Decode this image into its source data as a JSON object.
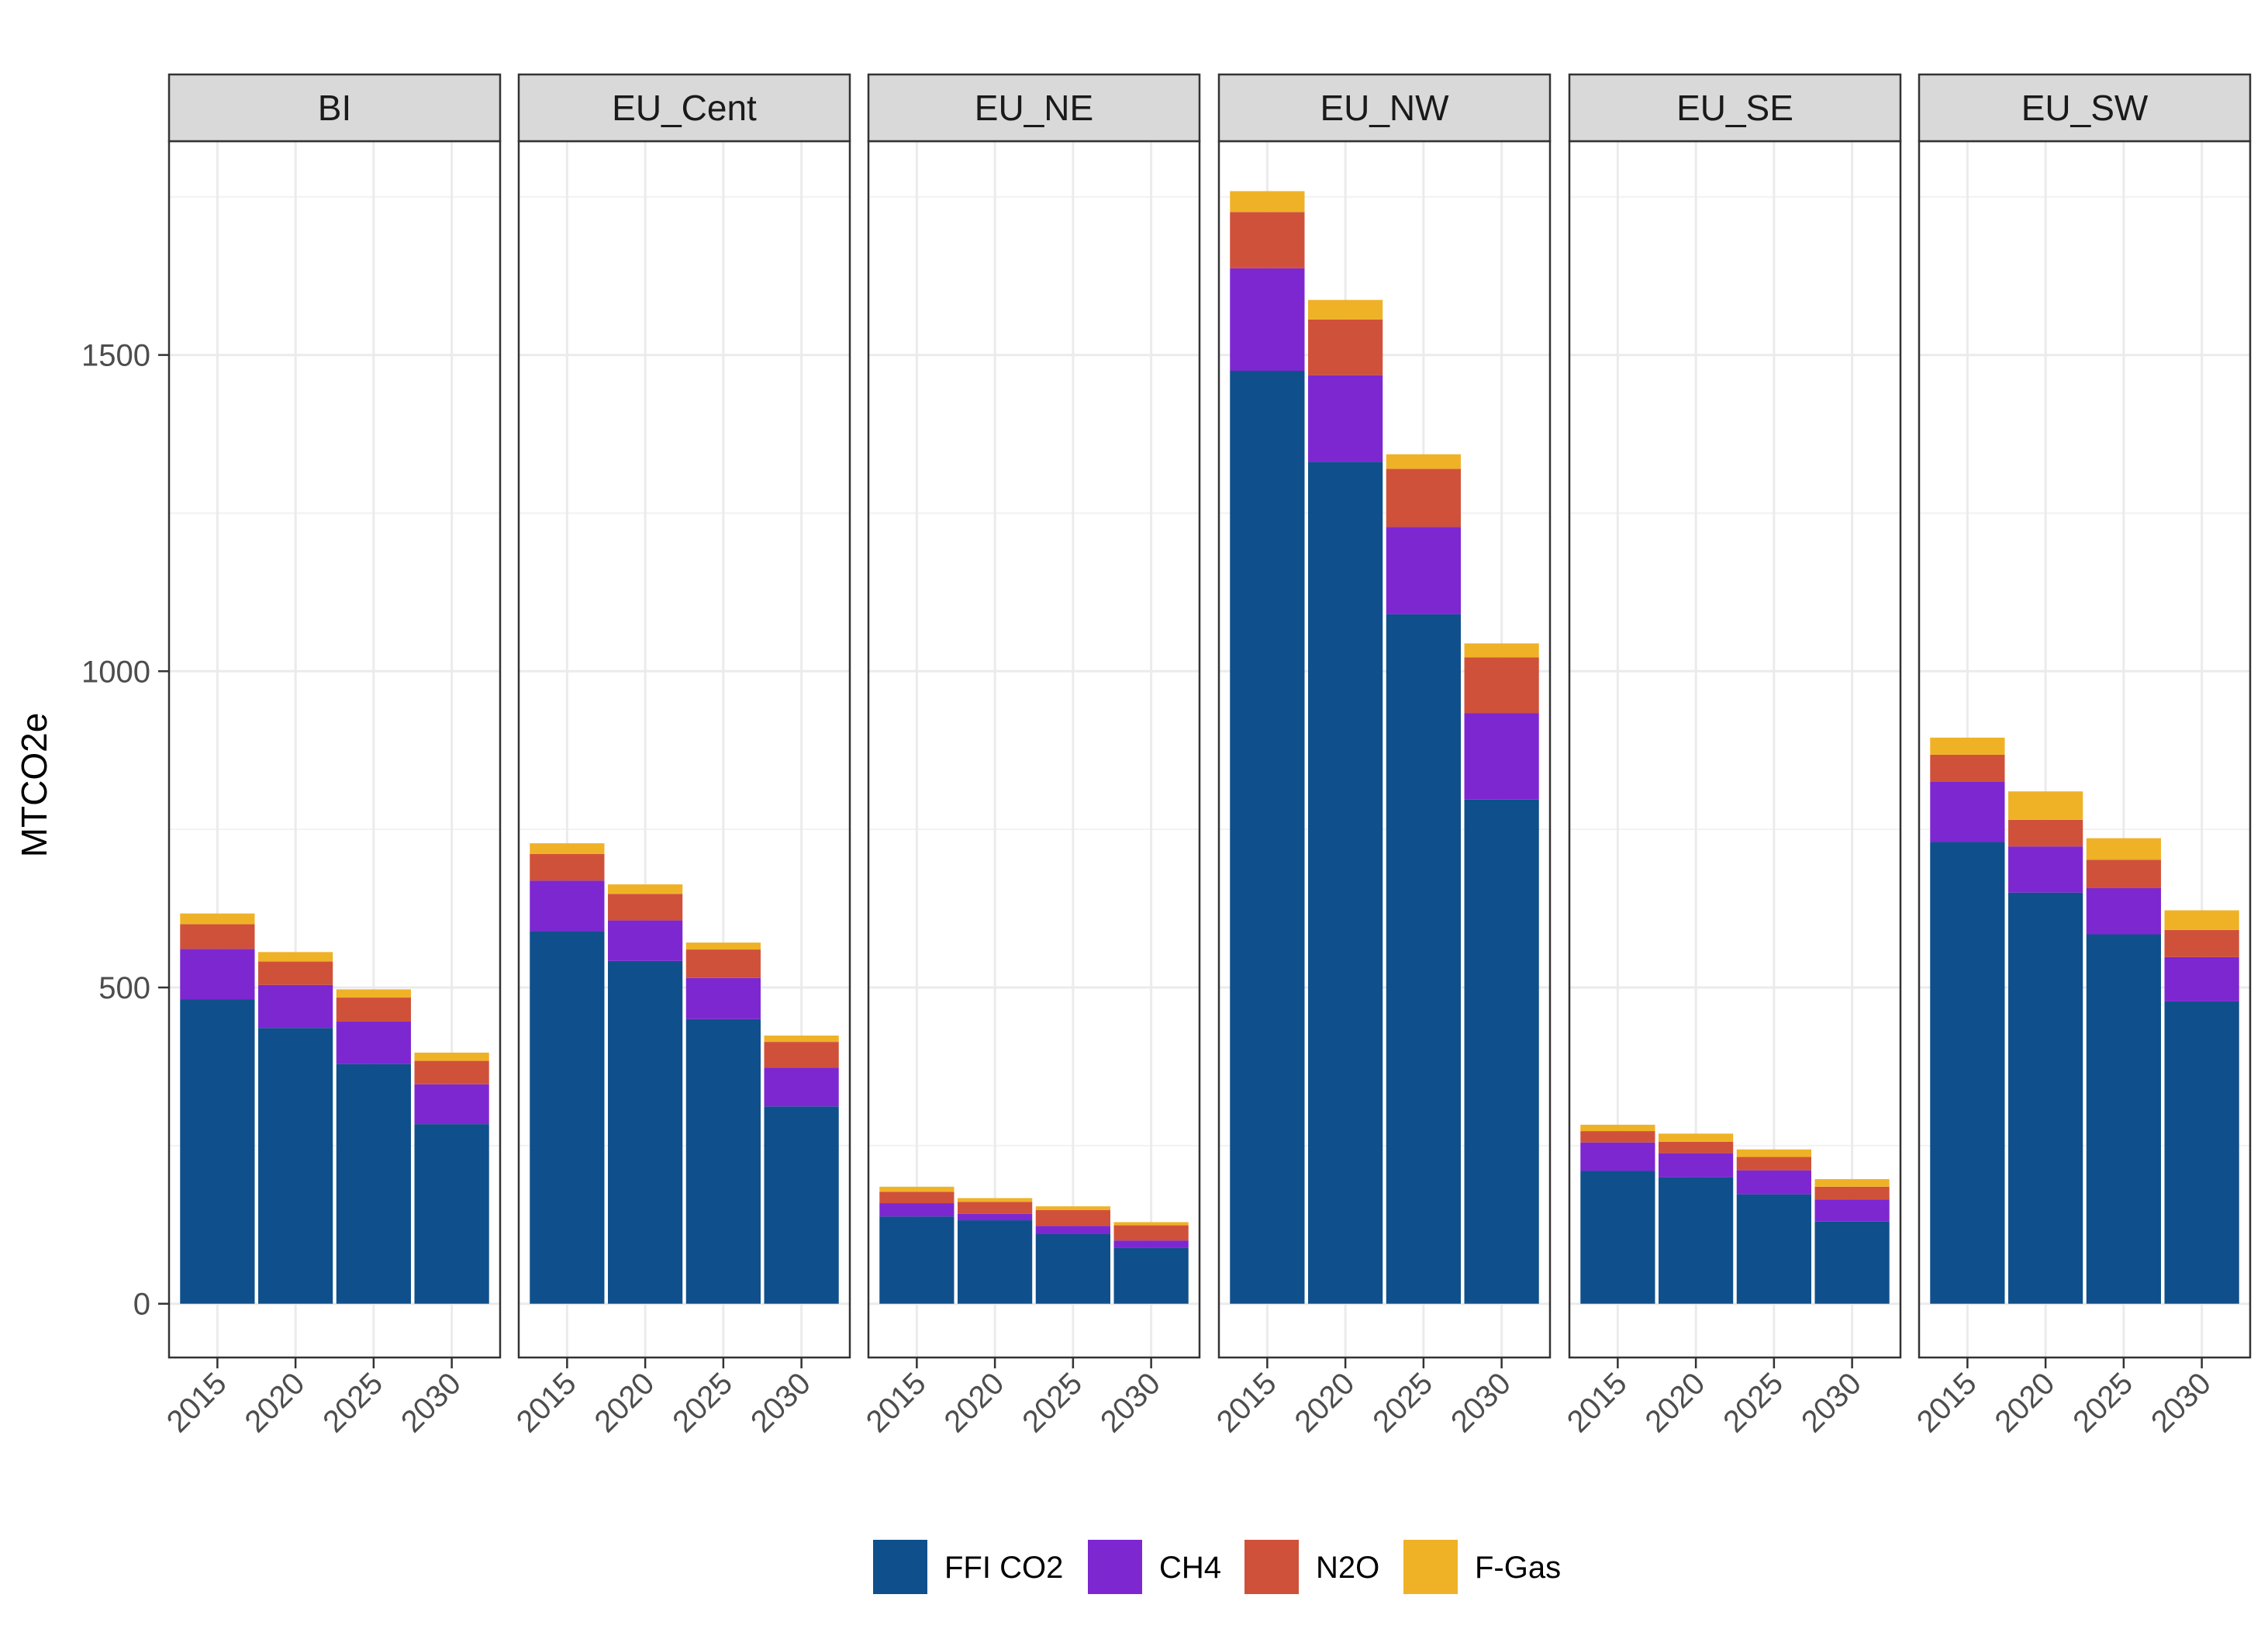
{
  "chart_data": {
    "type": "bar",
    "stacked": true,
    "facets": [
      "BI",
      "EU_Cent",
      "EU_NE",
      "EU_NW",
      "EU_SE",
      "EU_SW"
    ],
    "categories": [
      "2015",
      "2020",
      "2025",
      "2030"
    ],
    "xlabel": "",
    "ylabel": "MTCO2e",
    "ylim": [
      -85,
      1838
    ],
    "yticks": [
      0,
      500,
      1000,
      1500
    ],
    "grid": true,
    "legend_position": "bottom",
    "series": [
      {
        "name": "FFI CO2",
        "color": "#0f4f8b",
        "values": {
          "BI": [
            481,
            436,
            379,
            284
          ],
          "EU_Cent": [
            589,
            542,
            450,
            312
          ],
          "EU_NE": [
            138,
            132,
            110,
            88
          ],
          "EU_NW": [
            1475,
            1331,
            1090,
            797
          ],
          "EU_SE": [
            210,
            200,
            173,
            130
          ],
          "EU_SW": [
            730,
            650,
            584,
            478
          ]
        }
      },
      {
        "name": "CH4",
        "color": "#7d27d1",
        "values": {
          "BI": [
            80,
            68,
            67,
            63
          ],
          "EU_Cent": [
            80,
            64,
            65,
            61
          ],
          "EU_NE": [
            21,
            10,
            13,
            12
          ],
          "EU_NW": [
            162,
            137,
            138,
            137
          ],
          "EU_SE": [
            45,
            38,
            38,
            35
          ],
          "EU_SW": [
            95,
            73,
            73,
            70
          ]
        }
      },
      {
        "name": "N2O",
        "color": "#d05139",
        "values": {
          "BI": [
            39,
            37,
            38,
            37
          ],
          "EU_Cent": [
            42,
            42,
            45,
            41
          ],
          "EU_NE": [
            18,
            19,
            25,
            24
          ],
          "EU_NW": [
            89,
            88,
            92,
            88
          ],
          "EU_SE": [
            18,
            18,
            21,
            20
          ],
          "EU_SW": [
            43,
            42,
            45,
            43
          ]
        }
      },
      {
        "name": "F-Gas",
        "color": "#efb227",
        "values": {
          "BI": [
            17,
            15,
            13,
            13
          ],
          "EU_Cent": [
            17,
            15,
            11,
            10
          ],
          "EU_NE": [
            8,
            6,
            6,
            5
          ],
          "EU_NW": [
            33,
            31,
            23,
            22
          ],
          "EU_SE": [
            10,
            13,
            12,
            12
          ],
          "EU_SW": [
            27,
            45,
            34,
            31
          ]
        }
      }
    ]
  }
}
